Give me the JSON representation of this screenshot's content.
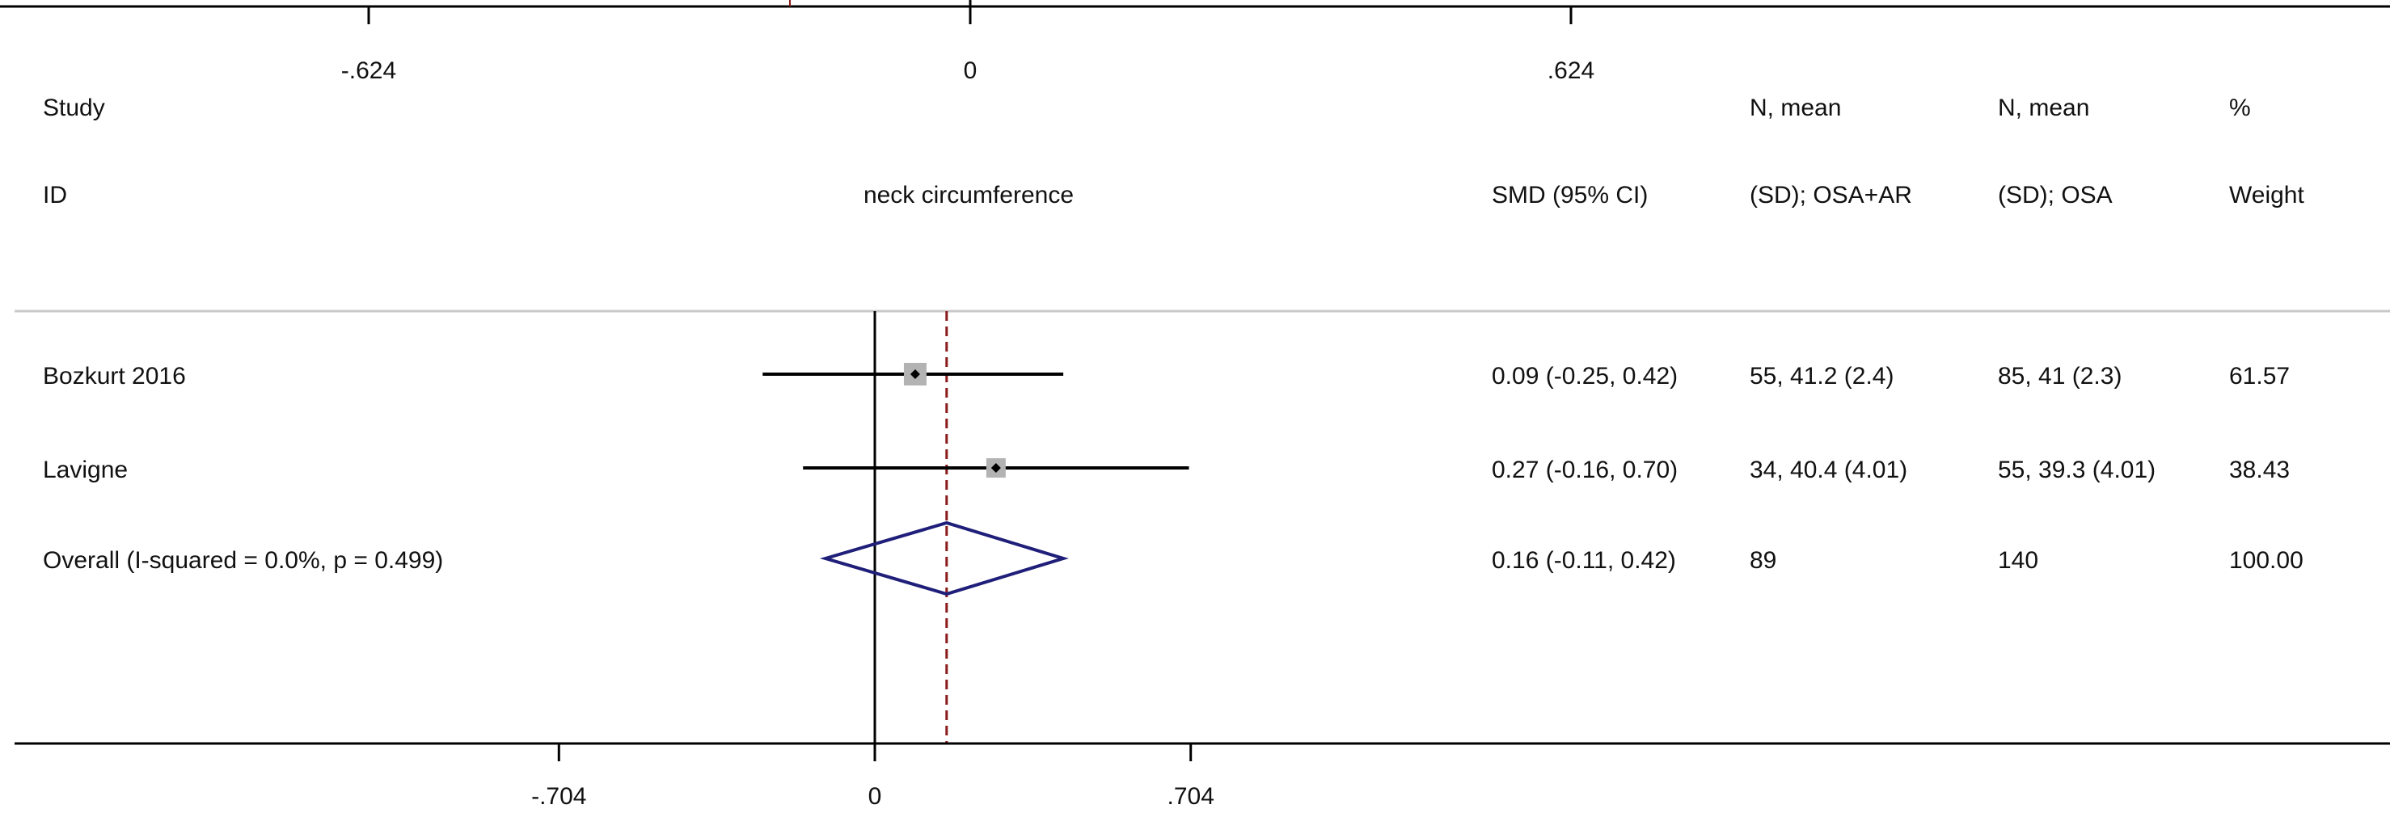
{
  "chart_data": {
    "type": "forest",
    "top_axis": {
      "ticks": [
        {
          "value": -0.624,
          "label": "-.624"
        },
        {
          "value": 0,
          "label": "0"
        },
        {
          "value": 0.624,
          "label": ".624"
        }
      ]
    },
    "bottom_axis": {
      "ticks": [
        {
          "value": -0.704,
          "label": "-.704"
        },
        {
          "value": 0,
          "label": "0"
        },
        {
          "value": 0.704,
          "label": ".704"
        }
      ]
    },
    "headers": {
      "study": [
        "Study",
        "ID"
      ],
      "outcome": "neck circumference",
      "smd": "SMD (95% CI)",
      "n1": [
        "N, mean",
        "(SD); OSA+AR"
      ],
      "n2": [
        "N, mean",
        "(SD); OSA"
      ],
      "weight": [
        "%",
        "Weight"
      ]
    },
    "studies": [
      {
        "id": "Bozkurt 2016",
        "smd": 0.09,
        "lower": -0.25,
        "upper": 0.42,
        "smd_text": "0.09 (-0.25, 0.42)",
        "n1_text": "55, 41.2 (2.4)",
        "n2_text": "85, 41 (2.3)",
        "weight": "61.57"
      },
      {
        "id": "Lavigne",
        "smd": 0.27,
        "lower": -0.16,
        "upper": 0.7,
        "smd_text": "0.27 (-0.16, 0.70)",
        "n1_text": "34, 40.4 (4.01)",
        "n2_text": "55, 39.3 (4.01)",
        "weight": "38.43"
      }
    ],
    "overall": {
      "label": "Overall  (I-squared = 0.0%, p = 0.499)",
      "smd": 0.16,
      "lower": -0.11,
      "upper": 0.42,
      "smd_text": "0.16 (-0.11, 0.42)",
      "n1_text": "89",
      "n2_text": "140",
      "weight": "100.00"
    },
    "colors": {
      "line": "#000000",
      "marker_box": "#b3b3b3",
      "diamond": "#1f1f7a",
      "overall_line": "#8b1a1a",
      "separator": "#c8c8c8"
    }
  }
}
